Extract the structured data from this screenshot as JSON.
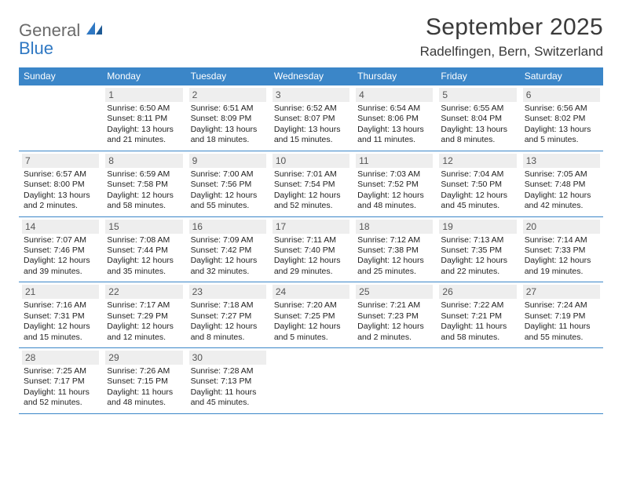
{
  "logo": {
    "word1": "General",
    "word2": "Blue"
  },
  "title": "September 2025",
  "location": "Radelfingen, Bern, Switzerland",
  "colors": {
    "header_bg": "#3b86c8",
    "header_text": "#ffffff",
    "daynum_bg": "#eeeeee",
    "week_border": "#3b86c8",
    "logo_gray": "#6a6a6a",
    "logo_blue": "#2f78c3"
  },
  "weekdays": [
    "Sunday",
    "Monday",
    "Tuesday",
    "Wednesday",
    "Thursday",
    "Friday",
    "Saturday"
  ],
  "weeks": [
    [
      {
        "n": "",
        "sunrise": "",
        "sunset": "",
        "day1": "",
        "day2": ""
      },
      {
        "n": "1",
        "sunrise": "Sunrise: 6:50 AM",
        "sunset": "Sunset: 8:11 PM",
        "day1": "Daylight: 13 hours",
        "day2": "and 21 minutes."
      },
      {
        "n": "2",
        "sunrise": "Sunrise: 6:51 AM",
        "sunset": "Sunset: 8:09 PM",
        "day1": "Daylight: 13 hours",
        "day2": "and 18 minutes."
      },
      {
        "n": "3",
        "sunrise": "Sunrise: 6:52 AM",
        "sunset": "Sunset: 8:07 PM",
        "day1": "Daylight: 13 hours",
        "day2": "and 15 minutes."
      },
      {
        "n": "4",
        "sunrise": "Sunrise: 6:54 AM",
        "sunset": "Sunset: 8:06 PM",
        "day1": "Daylight: 13 hours",
        "day2": "and 11 minutes."
      },
      {
        "n": "5",
        "sunrise": "Sunrise: 6:55 AM",
        "sunset": "Sunset: 8:04 PM",
        "day1": "Daylight: 13 hours",
        "day2": "and 8 minutes."
      },
      {
        "n": "6",
        "sunrise": "Sunrise: 6:56 AM",
        "sunset": "Sunset: 8:02 PM",
        "day1": "Daylight: 13 hours",
        "day2": "and 5 minutes."
      }
    ],
    [
      {
        "n": "7",
        "sunrise": "Sunrise: 6:57 AM",
        "sunset": "Sunset: 8:00 PM",
        "day1": "Daylight: 13 hours",
        "day2": "and 2 minutes."
      },
      {
        "n": "8",
        "sunrise": "Sunrise: 6:59 AM",
        "sunset": "Sunset: 7:58 PM",
        "day1": "Daylight: 12 hours",
        "day2": "and 58 minutes."
      },
      {
        "n": "9",
        "sunrise": "Sunrise: 7:00 AM",
        "sunset": "Sunset: 7:56 PM",
        "day1": "Daylight: 12 hours",
        "day2": "and 55 minutes."
      },
      {
        "n": "10",
        "sunrise": "Sunrise: 7:01 AM",
        "sunset": "Sunset: 7:54 PM",
        "day1": "Daylight: 12 hours",
        "day2": "and 52 minutes."
      },
      {
        "n": "11",
        "sunrise": "Sunrise: 7:03 AM",
        "sunset": "Sunset: 7:52 PM",
        "day1": "Daylight: 12 hours",
        "day2": "and 48 minutes."
      },
      {
        "n": "12",
        "sunrise": "Sunrise: 7:04 AM",
        "sunset": "Sunset: 7:50 PM",
        "day1": "Daylight: 12 hours",
        "day2": "and 45 minutes."
      },
      {
        "n": "13",
        "sunrise": "Sunrise: 7:05 AM",
        "sunset": "Sunset: 7:48 PM",
        "day1": "Daylight: 12 hours",
        "day2": "and 42 minutes."
      }
    ],
    [
      {
        "n": "14",
        "sunrise": "Sunrise: 7:07 AM",
        "sunset": "Sunset: 7:46 PM",
        "day1": "Daylight: 12 hours",
        "day2": "and 39 minutes."
      },
      {
        "n": "15",
        "sunrise": "Sunrise: 7:08 AM",
        "sunset": "Sunset: 7:44 PM",
        "day1": "Daylight: 12 hours",
        "day2": "and 35 minutes."
      },
      {
        "n": "16",
        "sunrise": "Sunrise: 7:09 AM",
        "sunset": "Sunset: 7:42 PM",
        "day1": "Daylight: 12 hours",
        "day2": "and 32 minutes."
      },
      {
        "n": "17",
        "sunrise": "Sunrise: 7:11 AM",
        "sunset": "Sunset: 7:40 PM",
        "day1": "Daylight: 12 hours",
        "day2": "and 29 minutes."
      },
      {
        "n": "18",
        "sunrise": "Sunrise: 7:12 AM",
        "sunset": "Sunset: 7:38 PM",
        "day1": "Daylight: 12 hours",
        "day2": "and 25 minutes."
      },
      {
        "n": "19",
        "sunrise": "Sunrise: 7:13 AM",
        "sunset": "Sunset: 7:35 PM",
        "day1": "Daylight: 12 hours",
        "day2": "and 22 minutes."
      },
      {
        "n": "20",
        "sunrise": "Sunrise: 7:14 AM",
        "sunset": "Sunset: 7:33 PM",
        "day1": "Daylight: 12 hours",
        "day2": "and 19 minutes."
      }
    ],
    [
      {
        "n": "21",
        "sunrise": "Sunrise: 7:16 AM",
        "sunset": "Sunset: 7:31 PM",
        "day1": "Daylight: 12 hours",
        "day2": "and 15 minutes."
      },
      {
        "n": "22",
        "sunrise": "Sunrise: 7:17 AM",
        "sunset": "Sunset: 7:29 PM",
        "day1": "Daylight: 12 hours",
        "day2": "and 12 minutes."
      },
      {
        "n": "23",
        "sunrise": "Sunrise: 7:18 AM",
        "sunset": "Sunset: 7:27 PM",
        "day1": "Daylight: 12 hours",
        "day2": "and 8 minutes."
      },
      {
        "n": "24",
        "sunrise": "Sunrise: 7:20 AM",
        "sunset": "Sunset: 7:25 PM",
        "day1": "Daylight: 12 hours",
        "day2": "and 5 minutes."
      },
      {
        "n": "25",
        "sunrise": "Sunrise: 7:21 AM",
        "sunset": "Sunset: 7:23 PM",
        "day1": "Daylight: 12 hours",
        "day2": "and 2 minutes."
      },
      {
        "n": "26",
        "sunrise": "Sunrise: 7:22 AM",
        "sunset": "Sunset: 7:21 PM",
        "day1": "Daylight: 11 hours",
        "day2": "and 58 minutes."
      },
      {
        "n": "27",
        "sunrise": "Sunrise: 7:24 AM",
        "sunset": "Sunset: 7:19 PM",
        "day1": "Daylight: 11 hours",
        "day2": "and 55 minutes."
      }
    ],
    [
      {
        "n": "28",
        "sunrise": "Sunrise: 7:25 AM",
        "sunset": "Sunset: 7:17 PM",
        "day1": "Daylight: 11 hours",
        "day2": "and 52 minutes."
      },
      {
        "n": "29",
        "sunrise": "Sunrise: 7:26 AM",
        "sunset": "Sunset: 7:15 PM",
        "day1": "Daylight: 11 hours",
        "day2": "and 48 minutes."
      },
      {
        "n": "30",
        "sunrise": "Sunrise: 7:28 AM",
        "sunset": "Sunset: 7:13 PM",
        "day1": "Daylight: 11 hours",
        "day2": "and 45 minutes."
      },
      {
        "n": "",
        "sunrise": "",
        "sunset": "",
        "day1": "",
        "day2": ""
      },
      {
        "n": "",
        "sunrise": "",
        "sunset": "",
        "day1": "",
        "day2": ""
      },
      {
        "n": "",
        "sunrise": "",
        "sunset": "",
        "day1": "",
        "day2": ""
      },
      {
        "n": "",
        "sunrise": "",
        "sunset": "",
        "day1": "",
        "day2": ""
      }
    ]
  ]
}
